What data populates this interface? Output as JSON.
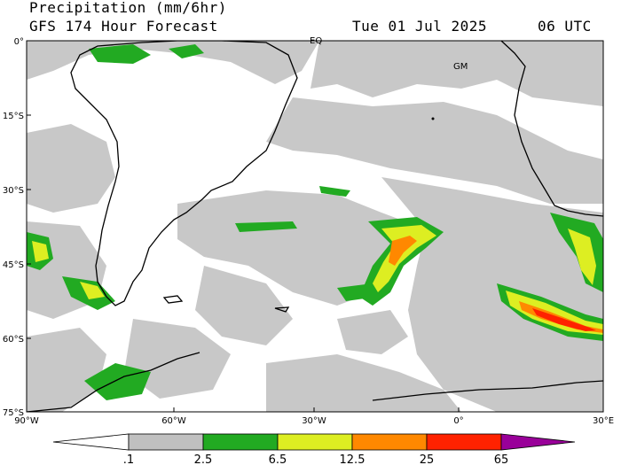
{
  "header": {
    "title": "Precipitation (mm/6hr)",
    "model": "GFS 174 Hour Forecast",
    "valid_date": "Tue 01 Jul 2025",
    "valid_time": "06 UTC"
  },
  "map": {
    "region": "South America / South Atlantic",
    "lat_labels": [
      "0°",
      "15°S",
      "30°S",
      "45°S",
      "60°S",
      "75°S"
    ],
    "lon_labels": [
      "90°W",
      "60°W",
      "30°W",
      "0°",
      "30°E"
    ],
    "markers": [
      "EQ",
      "GM"
    ]
  },
  "legend": {
    "labels": [
      ".1",
      "2.5",
      "6.5",
      "12.5",
      "25",
      "65"
    ],
    "colors": [
      "#ffffff",
      "#c0c0c0",
      "#22aa22",
      "#ddee22",
      "#ff8800",
      "#ff2200",
      "#990099"
    ]
  }
}
